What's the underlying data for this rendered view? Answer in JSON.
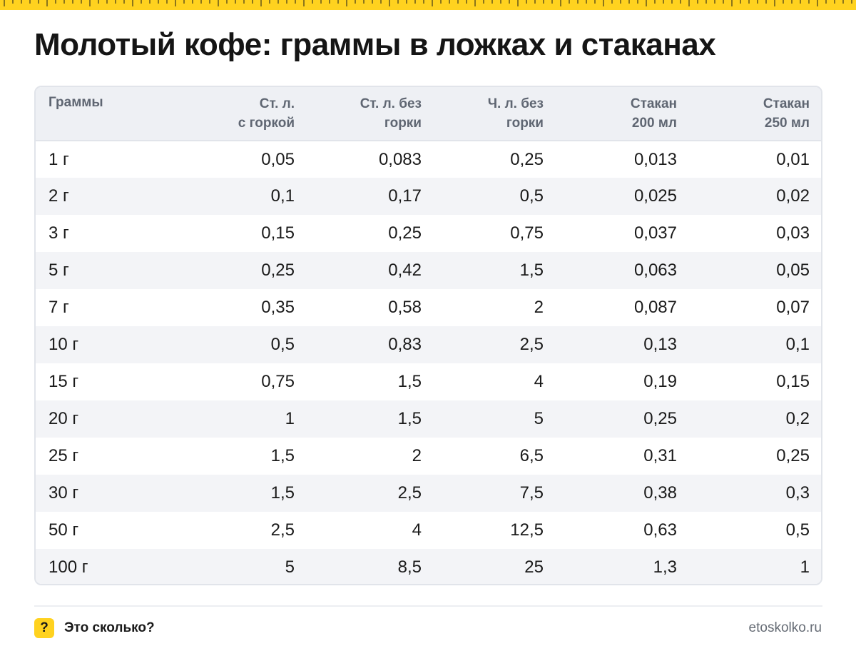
{
  "title": "Молотый кофе: граммы в ложках и стаканах",
  "table": {
    "headers": [
      "Граммы",
      "Ст. л.\nс горкой",
      "Ст. л. без\nгорки",
      "Ч. л. без\nгорки",
      "Стакан\n200 мл",
      "Стакан\n250 мл"
    ],
    "rows": [
      [
        "1 г",
        "0,05",
        "0,083",
        "0,25",
        "0,013",
        "0,01"
      ],
      [
        "2 г",
        "0,1",
        "0,17",
        "0,5",
        "0,025",
        "0,02"
      ],
      [
        "3 г",
        "0,15",
        "0,25",
        "0,75",
        "0,037",
        "0,03"
      ],
      [
        "5 г",
        "0,25",
        "0,42",
        "1,5",
        "0,063",
        "0,05"
      ],
      [
        "7 г",
        "0,35",
        "0,58",
        "2",
        "0,087",
        "0,07"
      ],
      [
        "10 г",
        "0,5",
        "0,83",
        "2,5",
        "0,13",
        "0,1"
      ],
      [
        "15 г",
        "0,75",
        "1,5",
        "4",
        "0,19",
        "0,15"
      ],
      [
        "20 г",
        "1",
        "1,5",
        "5",
        "0,25",
        "0,2"
      ],
      [
        "25 г",
        "1,5",
        "2",
        "6,5",
        "0,31",
        "0,25"
      ],
      [
        "30 г",
        "1,5",
        "2,5",
        "7,5",
        "0,38",
        "0,3"
      ],
      [
        "50 г",
        "2,5",
        "4",
        "12,5",
        "0,63",
        "0,5"
      ],
      [
        "100 г",
        "5",
        "8,5",
        "25",
        "1,3",
        "1"
      ]
    ]
  },
  "footer": {
    "badge": "?",
    "brand": "Это сколько?",
    "site": "etoskolko.ru"
  },
  "colors": {
    "accent": "#ffd21f",
    "header_bg": "#eef0f4",
    "stripe_bg": "#f3f4f7",
    "header_text": "#5f6672"
  }
}
